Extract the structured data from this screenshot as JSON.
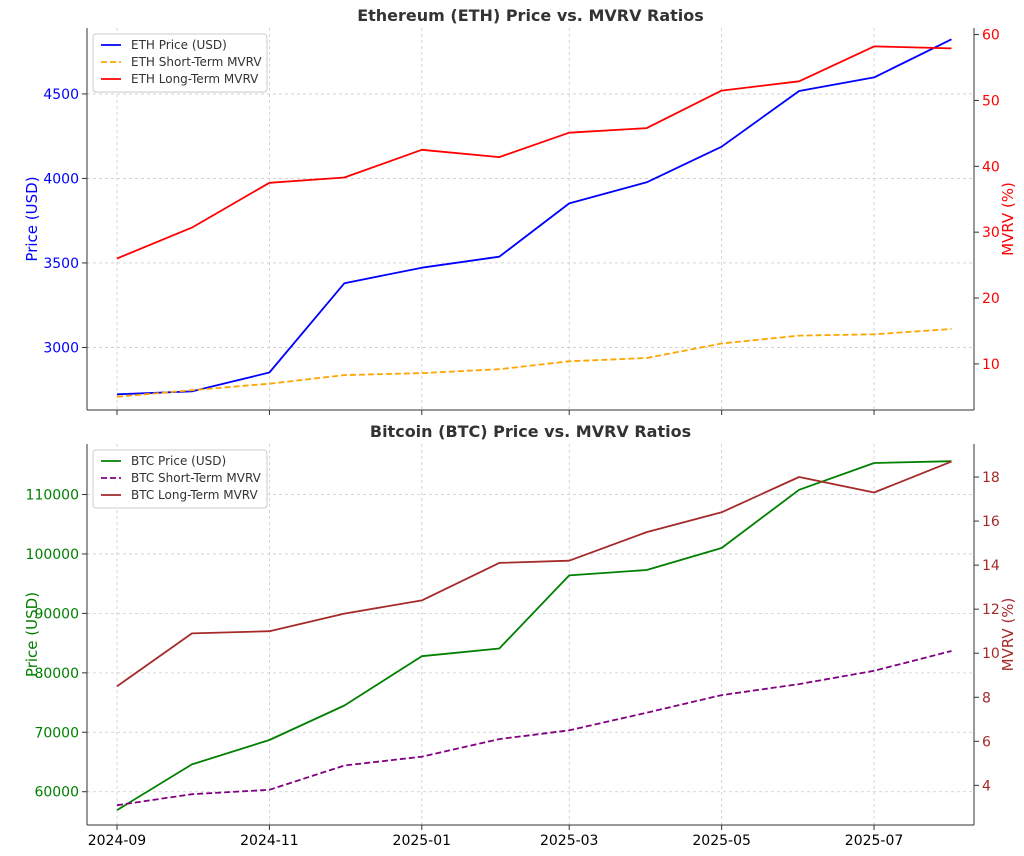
{
  "chart_data": [
    {
      "type": "line",
      "title": "Ethereum (ETH) Price vs. MVRV Ratios",
      "x": [
        "2024-09-01",
        "2024-10-01",
        "2024-11-01",
        "2024-12-01",
        "2025-01-01",
        "2025-02-01",
        "2025-03-01",
        "2025-04-01",
        "2025-05-01",
        "2025-06-01",
        "2025-07-01",
        "2025-08-01"
      ],
      "xticks": [
        "2024-09",
        "2024-11",
        "2025-01",
        "2025-03",
        "2025-05",
        "2025-07"
      ],
      "left_axis": {
        "label": "Price (USD)",
        "color": "#0000ff",
        "ylim": [
          2630,
          4890
        ],
        "ticks": [
          3000,
          3500,
          4000,
          4500
        ]
      },
      "right_axis": {
        "label": "MVRV (%)",
        "color": "#ff0000",
        "ylim": [
          3,
          61
        ],
        "ticks": [
          10,
          20,
          30,
          40,
          50,
          60
        ]
      },
      "series": [
        {
          "name": "ETH Price (USD)",
          "axis": "left",
          "color": "#0000ff",
          "dash": false,
          "values": [
            2723,
            2740,
            2852,
            3380,
            3472,
            3537,
            3852,
            3977,
            4188,
            4517,
            4598,
            4823
          ]
        },
        {
          "name": "ETH Short-Term MVRV",
          "axis": "right",
          "color": "#ffa500",
          "dash": true,
          "values": [
            5.0,
            6.0,
            7.0,
            8.3,
            8.6,
            9.2,
            10.4,
            10.9,
            13.1,
            14.3,
            14.5,
            15.3
          ]
        },
        {
          "name": "ETH Long-Term MVRV",
          "axis": "right",
          "color": "#ff0000",
          "dash": false,
          "values": [
            26.0,
            30.7,
            37.5,
            38.3,
            42.5,
            41.4,
            45.1,
            45.8,
            51.5,
            52.9,
            58.2,
            57.9
          ]
        }
      ],
      "legend": "top-left",
      "grid": true
    },
    {
      "type": "line",
      "title": "Bitcoin (BTC) Price vs. MVRV Ratios",
      "x": [
        "2024-09-01",
        "2024-10-01",
        "2024-11-01",
        "2024-12-01",
        "2025-01-01",
        "2025-02-01",
        "2025-03-01",
        "2025-04-01",
        "2025-05-01",
        "2025-06-01",
        "2025-07-01",
        "2025-08-01"
      ],
      "xticks": [
        "2024-09",
        "2024-11",
        "2025-01",
        "2025-03",
        "2025-05",
        "2025-07"
      ],
      "left_axis": {
        "label": "Price (USD)",
        "color": "#008000",
        "ylim": [
          54400,
          118500
        ],
        "ticks": [
          60000,
          70000,
          80000,
          90000,
          100000,
          110000
        ]
      },
      "right_axis": {
        "label": "MVRV (%)",
        "color": "#a52a2a",
        "ylim": [
          2.2,
          19.5
        ],
        "ticks": [
          4,
          6,
          8,
          10,
          12,
          14,
          16,
          18
        ]
      },
      "series": [
        {
          "name": "BTC Price (USD)",
          "axis": "left",
          "color": "#008000",
          "dash": false,
          "values": [
            56900,
            64600,
            68700,
            74500,
            82800,
            84100,
            96400,
            97300,
            101000,
            110800,
            115300,
            115600
          ]
        },
        {
          "name": "BTC Short-Term MVRV",
          "axis": "right",
          "color": "#800080",
          "dash": true,
          "values": [
            3.1,
            3.6,
            3.8,
            4.9,
            5.3,
            6.1,
            6.5,
            7.3,
            8.1,
            8.6,
            9.2,
            10.1
          ]
        },
        {
          "name": "BTC Long-Term MVRV",
          "axis": "right",
          "color": "#a52a2a",
          "dash": false,
          "values": [
            8.5,
            10.9,
            11.0,
            11.8,
            12.4,
            14.1,
            14.2,
            15.5,
            16.4,
            18.0,
            17.3,
            18.7
          ]
        }
      ],
      "legend": "top-left",
      "grid": true
    }
  ]
}
